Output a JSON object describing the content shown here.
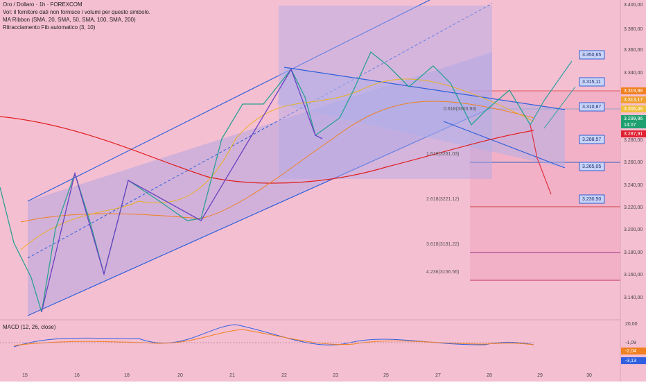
{
  "header": {
    "symbol": "Oro / Dollaro · 1h · FOREXCOM",
    "volume_note": "Vol: il fornitore dati non fornisce i volumi per questo simbolo.",
    "ma_ribbon": "MA Ribbon (SMA, 20, SMA, 50, SMA, 100, SMA, 200)",
    "fib": "Ritracciamento Fib automatico (3, 10)"
  },
  "price_axis": [
    "3.400,00",
    "3.380,00",
    "3.360,00",
    "3.340,00",
    "3.280,00",
    "3.260,00",
    "3.240,00",
    "3.220,00",
    "3.200,00",
    "3.180,00",
    "3.160,00",
    "3.140,00"
  ],
  "price_tags": {
    "orange": "3.319,88",
    "tag2": "3.313,17",
    "tag3": "3.306,46",
    "last": "3.299,96",
    "timer": "14:07",
    "red": "3.287,91"
  },
  "fib_levels": [
    "0.618(3303.93)",
    "1.618(3261.03)",
    "2.618(3221.12)",
    "3.618(3181.22)",
    "4.236(3156.56)"
  ],
  "targets": [
    "3.350,65",
    "3.315,11",
    "3.310,87",
    "3.288,57",
    "3.265,05",
    "3.230,50"
  ],
  "macd": {
    "label": "MACD (12, 26, close)",
    "axis": [
      "20,00",
      "-1,09",
      "-2,04",
      "-3,13"
    ]
  },
  "dates": [
    "15",
    "16",
    "18",
    "20",
    "21",
    "22",
    "23",
    "25",
    "27",
    "28",
    "29",
    "30"
  ]
}
